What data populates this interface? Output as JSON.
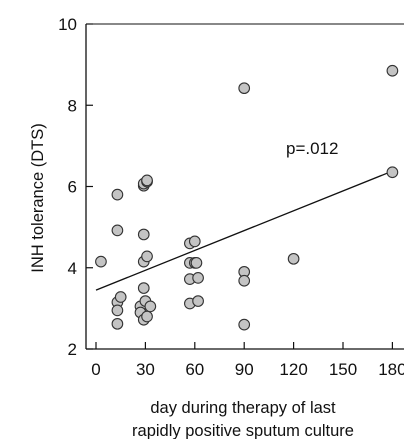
{
  "chart_data": {
    "type": "scatter",
    "title": "",
    "xlabel_lines": [
      "day during therapy of last",
      "rapidly positive sputum culture"
    ],
    "ylabel": "INH tolerance (DTS)",
    "x_categories": [
      0,
      30,
      60,
      90,
      120,
      150,
      180
    ],
    "x_tick_labels": [
      "0",
      "30",
      "60",
      "90",
      "120",
      "150",
      "180"
    ],
    "ylim": [
      2,
      10
    ],
    "y_ticks": [
      2,
      4,
      6,
      8,
      10
    ],
    "y_tick_labels": [
      "2",
      "4",
      "6",
      "8",
      "10"
    ],
    "grid": false,
    "legend": "none",
    "marker_fill": "#c4c4c4",
    "marker_stroke": "#333333",
    "annotation": "p=.012",
    "points": [
      {
        "x": 3,
        "y": 4.15
      },
      {
        "x": 13,
        "y": 5.8
      },
      {
        "x": 13,
        "y": 4.92
      },
      {
        "x": 13,
        "y": 3.15
      },
      {
        "x": 13,
        "y": 2.95
      },
      {
        "x": 13,
        "y": 2.62
      },
      {
        "x": 15,
        "y": 3.28
      },
      {
        "x": 27,
        "y": 3.05
      },
      {
        "x": 27,
        "y": 2.9
      },
      {
        "x": 29,
        "y": 6.02
      },
      {
        "x": 29,
        "y": 6.07
      },
      {
        "x": 29,
        "y": 4.82
      },
      {
        "x": 29,
        "y": 4.15
      },
      {
        "x": 29,
        "y": 3.5
      },
      {
        "x": 29,
        "y": 2.72
      },
      {
        "x": 30,
        "y": 3.18
      },
      {
        "x": 31,
        "y": 6.12
      },
      {
        "x": 31,
        "y": 6.15
      },
      {
        "x": 31,
        "y": 4.28
      },
      {
        "x": 31,
        "y": 2.8
      },
      {
        "x": 33,
        "y": 3.05
      },
      {
        "x": 57,
        "y": 4.6
      },
      {
        "x": 57,
        "y": 4.12
      },
      {
        "x": 57,
        "y": 3.72
      },
      {
        "x": 57,
        "y": 3.12
      },
      {
        "x": 60,
        "y": 4.65
      },
      {
        "x": 60,
        "y": 4.12
      },
      {
        "x": 61,
        "y": 4.12
      },
      {
        "x": 62,
        "y": 3.75
      },
      {
        "x": 62,
        "y": 3.18
      },
      {
        "x": 90,
        "y": 8.42
      },
      {
        "x": 90,
        "y": 3.9
      },
      {
        "x": 90,
        "y": 3.68
      },
      {
        "x": 90,
        "y": 2.6
      },
      {
        "x": 120,
        "y": 4.22
      },
      {
        "x": 180,
        "y": 8.85
      },
      {
        "x": 180,
        "y": 6.35
      }
    ],
    "regression_line": {
      "x": [
        0,
        180
      ],
      "y": [
        3.45,
        6.38
      ]
    }
  }
}
